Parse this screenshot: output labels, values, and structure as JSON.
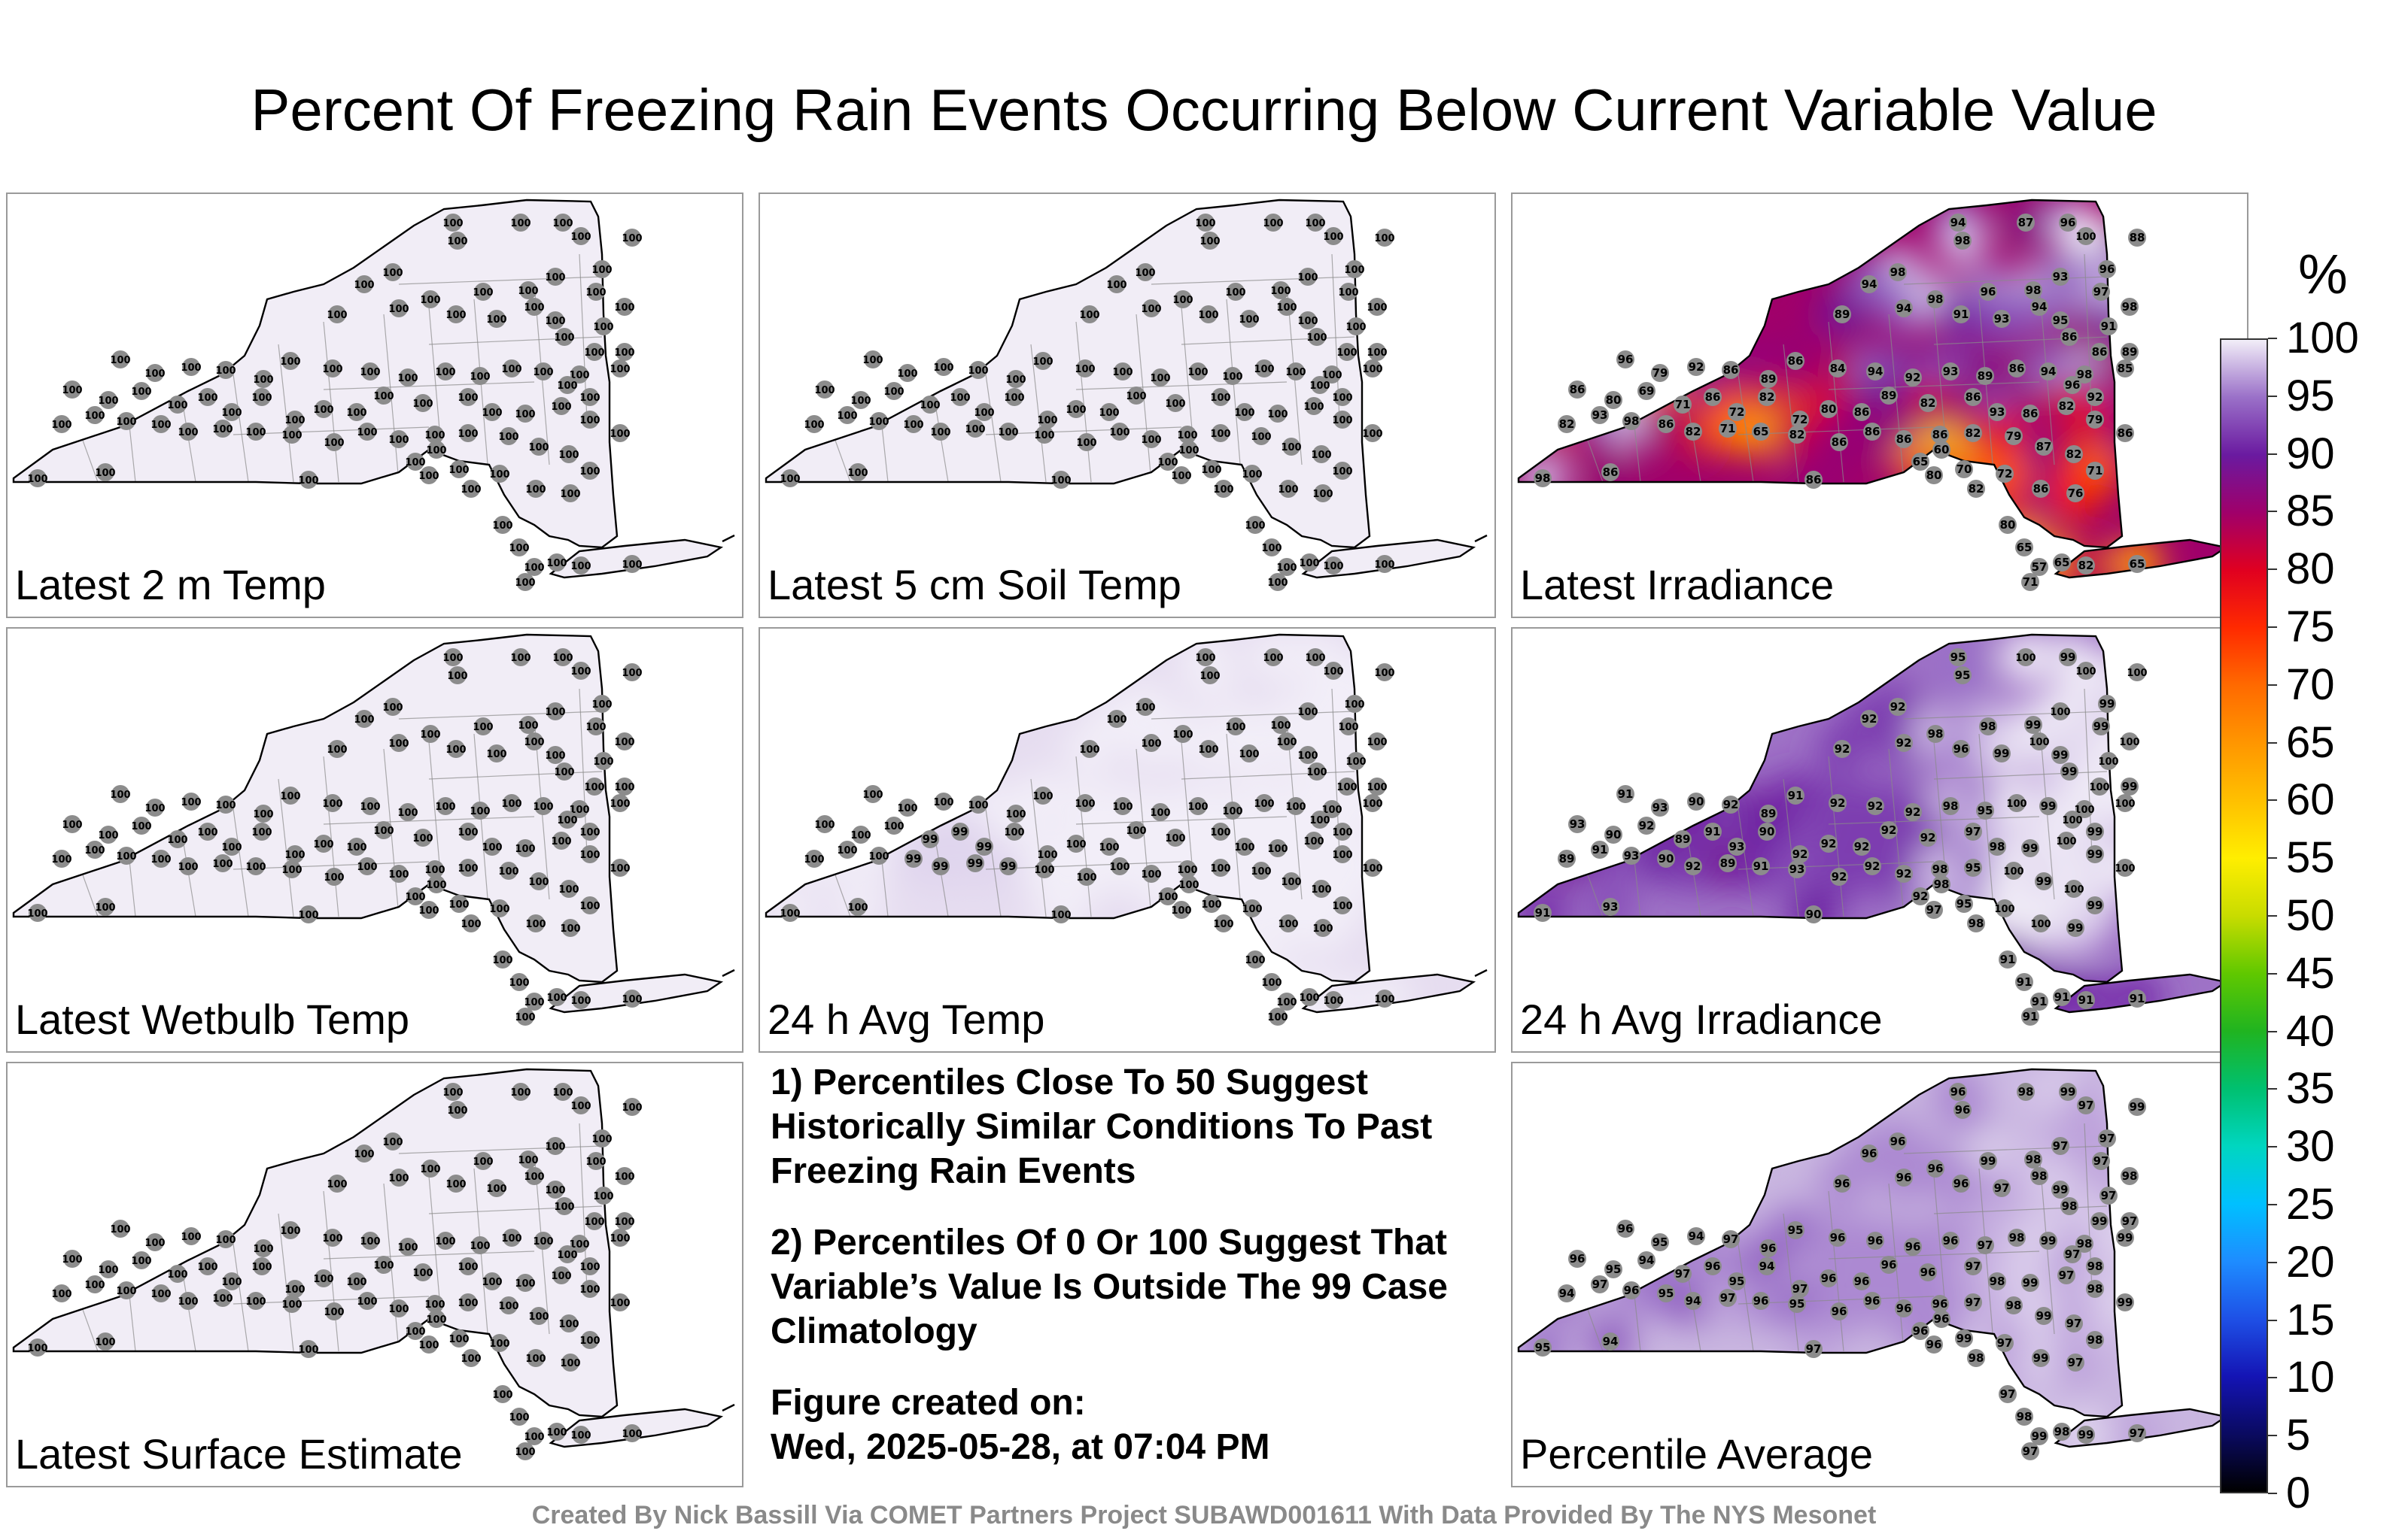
{
  "title": "Percent Of Freezing Rain Events Occurring Below Current Variable Value",
  "panels": [
    {
      "label": "Latest 2 m Temp",
      "field": "uniform"
    },
    {
      "label": "Latest 5 cm Soil Temp",
      "field": "uniform"
    },
    {
      "label": "Latest Irradiance",
      "field": "irradiance"
    },
    {
      "label": "Latest Wetbulb Temp",
      "field": "uniform"
    },
    {
      "label": "24 h Avg Temp",
      "field": "avgtemp"
    },
    {
      "label": "24 h Avg Irradiance",
      "field": "avgirr"
    },
    {
      "label": "Latest Surface Estimate",
      "field": "uniform"
    },
    {
      "label": "Percentile Average",
      "field": "average"
    }
  ],
  "notes": {
    "note1": "1) Percentiles Close To 50 Suggest Historically Similar Conditions To Past Freezing Rain Events",
    "note2": "2) Percentiles Of 0 Or 100 Suggest That Variable’s Value Is Outside The 99 Case Climatology",
    "created_label": "Figure created on:",
    "created_value": "Wed, 2025-05-28, at 07:04 PM"
  },
  "credit": "Created By Nick Bassill Via COMET Partners Project SUBAWD001611 With Data Provided By The NYS Mesonet",
  "colorbar": {
    "unit": "%",
    "ticks": [
      100,
      95,
      90,
      85,
      80,
      75,
      70,
      65,
      60,
      55,
      50,
      45,
      40,
      35,
      30,
      25,
      20,
      15,
      10,
      5,
      0
    ]
  },
  "stations": {
    "uniform": [
      100,
      100,
      100,
      100,
      100,
      100,
      100,
      100,
      100,
      100,
      100,
      100,
      100,
      100,
      100,
      100,
      100,
      100,
      100,
      100,
      100,
      100,
      100,
      100,
      100,
      100,
      100,
      100,
      100,
      100,
      100,
      100,
      100,
      100,
      100,
      100,
      100,
      100,
      100,
      100,
      100,
      100,
      100,
      100,
      100,
      100,
      100,
      100,
      100,
      100,
      100,
      100,
      100,
      100,
      100,
      100,
      100,
      100,
      100,
      100,
      100,
      100,
      100,
      100,
      100,
      100,
      100,
      100,
      100,
      100,
      100,
      100,
      100,
      100,
      100,
      100,
      100,
      100,
      100,
      100,
      100,
      100,
      100,
      100,
      100,
      100,
      100,
      100,
      100,
      100
    ],
    "irradiance": [
      94,
      87,
      96,
      100,
      98,
      88,
      96,
      98,
      94,
      93,
      98,
      96,
      97,
      98,
      94,
      98,
      89,
      91,
      93,
      94,
      95,
      91,
      86,
      86,
      89,
      98,
      96,
      79,
      92,
      86,
      89,
      86,
      84,
      94,
      92,
      93,
      89,
      86,
      94,
      96,
      92,
      85,
      86,
      80,
      69,
      71,
      86,
      72,
      82,
      72,
      80,
      86,
      89,
      82,
      86,
      93,
      86,
      82,
      79,
      86,
      82,
      93,
      98,
      86,
      82,
      71,
      65,
      82,
      86,
      86,
      86,
      86,
      82,
      79,
      87,
      82,
      71,
      86,
      76,
      82,
      70,
      72,
      65,
      60,
      80,
      65,
      57,
      71,
      65,
      82,
      65,
      98,
      86,
      86,
      80
    ]
  }
}
